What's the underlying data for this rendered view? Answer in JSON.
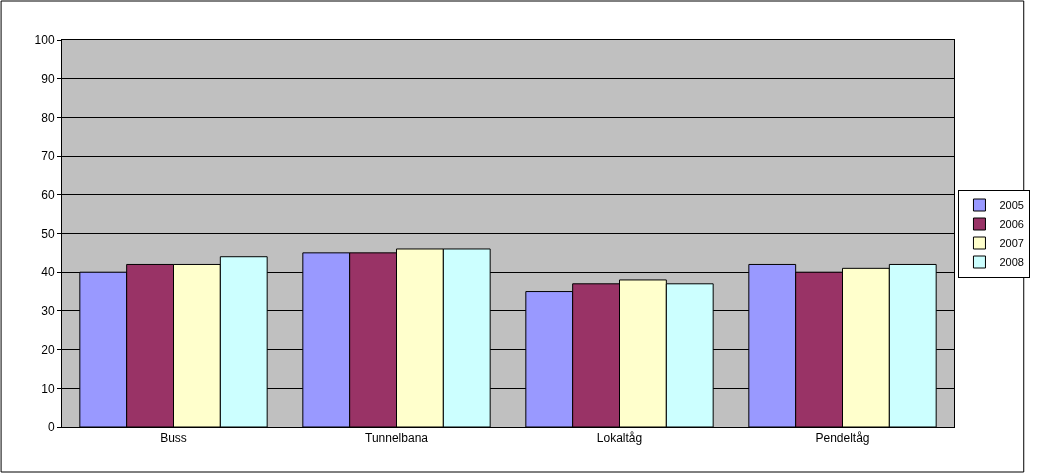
{
  "chart_data": {
    "type": "bar",
    "categories": [
      "Buss",
      "Tunnelbana",
      "Lokaltåg",
      "Pendeltåg"
    ],
    "series": [
      {
        "name": "2005",
        "color": "#9999ff",
        "values": [
          40,
          45,
          35,
          42
        ]
      },
      {
        "name": "2006",
        "color": "#993366",
        "values": [
          42,
          45,
          37,
          40
        ]
      },
      {
        "name": "2007",
        "color": "#ffffcc",
        "values": [
          42,
          46,
          38,
          41
        ]
      },
      {
        "name": "2008",
        "color": "#ccffff",
        "values": [
          44,
          46,
          37,
          42
        ]
      }
    ],
    "ylim": [
      0,
      100
    ],
    "yticks": [
      0,
      10,
      20,
      30,
      40,
      50,
      60,
      70,
      80,
      90,
      100
    ],
    "grid": "y",
    "legend": "right"
  }
}
